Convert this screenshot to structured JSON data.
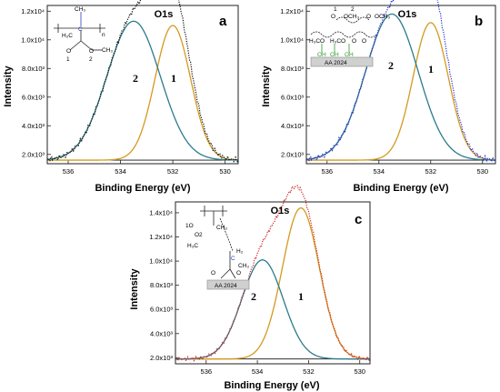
{
  "colors": {
    "frame": "#222222",
    "peak1": "#d39a1e",
    "peak2": "#2c7a8c",
    "fit_envelope": "#111111",
    "baseline": "#111111",
    "substrate_box": "#d0d0d0",
    "substrate_bond": "#2e9a2e",
    "highlight_atom": "#2a3fbf"
  },
  "chart_data": [
    {
      "type": "line",
      "panel_letter": "a",
      "title": "O1s",
      "xlabel": "Binding Energy (eV)",
      "ylabel": "Intensity",
      "xlim": [
        536.8,
        529.5
      ],
      "x_reversed": true,
      "ylim": [
        1350,
        12400
      ],
      "x_ticks": [
        "536",
        "534",
        "532",
        "530"
      ],
      "x_tick_values": [
        536,
        534,
        532,
        530
      ],
      "y_ticks": [
        "1.2x10⁴",
        "1.0x10⁴",
        "8.0x10³",
        "6.0x10³",
        "4.0x10³",
        "2.0x10³"
      ],
      "y_tick_values": [
        12000,
        10000,
        8000,
        6000,
        4000,
        2000
      ],
      "baseline": 1600,
      "peak_labels": [
        "1",
        "2"
      ],
      "components": [
        {
          "label": "1",
          "center": 532.0,
          "height": 9400,
          "fwhm": 1.6,
          "color_key": "peak1"
        },
        {
          "label": "2",
          "center": 533.5,
          "height": 9700,
          "fwhm": 2.4,
          "color_key": "peak2"
        }
      ],
      "experimental_style": "black dotted",
      "structure_labels": [
        "n",
        "C",
        "H₂C",
        "CH₃",
        "O",
        "O",
        "CH₃",
        "1",
        "2"
      ],
      "substrate_label": ""
    },
    {
      "type": "line",
      "panel_letter": "b",
      "title": "O1s",
      "xlabel": "Binding Energy (eV)",
      "ylabel": "Intensity",
      "xlim": [
        536.8,
        529.5
      ],
      "x_reversed": true,
      "ylim": [
        1350,
        12400
      ],
      "x_ticks": [
        "536",
        "534",
        "532",
        "530"
      ],
      "x_tick_values": [
        536,
        534,
        532,
        530
      ],
      "y_ticks": [
        "1.2x10⁴",
        "1.0x10⁴",
        "8.0x10³",
        "6.0x10³",
        "4.0x10³",
        "2.0x10³"
      ],
      "y_tick_values": [
        12000,
        10000,
        8000,
        6000,
        4000,
        2000
      ],
      "baseline": 1600,
      "peak_labels": [
        "1",
        "2"
      ],
      "components": [
        {
          "label": "1",
          "center": 532.0,
          "height": 9600,
          "fwhm": 1.6,
          "color_key": "peak1"
        },
        {
          "label": "2",
          "center": 533.5,
          "height": 10200,
          "fwhm": 2.4,
          "color_key": "peak2"
        }
      ],
      "experimental_style": "blue dotted",
      "structure_labels": [
        "1",
        "2",
        "O",
        "O",
        "OCH₃",
        "OCH₃",
        "H₃CO",
        "H₃CO",
        "O",
        "O",
        "OH",
        "OH",
        "OH"
      ],
      "substrate_label": "AA 2024"
    },
    {
      "type": "line",
      "panel_letter": "c",
      "title": "O1s",
      "xlabel": "Binding Energy (eV)",
      "ylabel": "Intensity",
      "xlim": [
        537.2,
        529.6
      ],
      "x_reversed": true,
      "ylim": [
        1500,
        14900
      ],
      "x_ticks": [
        "536",
        "534",
        "532",
        "530"
      ],
      "x_tick_values": [
        536,
        534,
        532,
        530
      ],
      "y_ticks": [
        "1.4x10⁴",
        "1.2x10⁴",
        "1.0x10⁴",
        "8.0x10³",
        "6.0x10³",
        "4.0x10³",
        "2.0x10³"
      ],
      "y_tick_values": [
        14000,
        12000,
        10000,
        8000,
        6000,
        4000,
        2000
      ],
      "baseline": 1900,
      "peak_labels": [
        "1",
        "2"
      ],
      "components": [
        {
          "label": "1",
          "center": 532.3,
          "height": 12500,
          "fwhm": 1.7,
          "color_key": "peak1"
        },
        {
          "label": "2",
          "center": 533.8,
          "height": 8200,
          "fwhm": 1.9,
          "color_key": "peak2"
        }
      ],
      "experimental_style": "red dotted",
      "structure_labels": [
        "1O",
        "O2",
        "H₃C",
        "CH₃",
        "H₂",
        "C",
        "CH₃",
        "O",
        "O"
      ],
      "substrate_label": "AA 2024"
    }
  ]
}
